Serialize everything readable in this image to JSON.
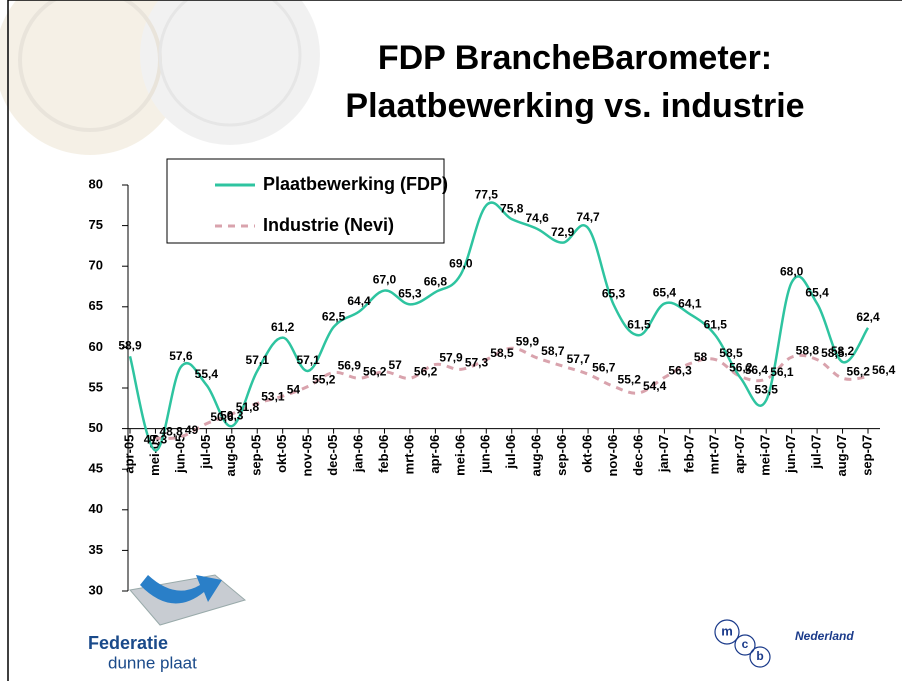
{
  "chart_data": {
    "type": "line",
    "title": "FDP BrancheBarometer:",
    "subtitle": "Plaatbewerking vs. industrie",
    "categories": [
      "apr-05",
      "mei-05",
      "jun-05",
      "jul-05",
      "aug-05",
      "sep-05",
      "okt-05",
      "nov-05",
      "dec-05",
      "jan-06",
      "feb-06",
      "mrt-06",
      "apr-06",
      "mei-06",
      "jun-06",
      "jul-06",
      "aug-06",
      "sep-06",
      "okt-06",
      "nov-06",
      "dec-06",
      "jan-07",
      "feb-07",
      "mrt-07",
      "apr-07",
      "mei-07",
      "jun-07",
      "jul-07",
      "aug-07",
      "sep-07"
    ],
    "series": [
      {
        "name": "Plaatbewerking (FDP)",
        "color": "#2ec4a0",
        "dashed": false,
        "values": [
          58.9,
          47.3,
          57.6,
          55.4,
          50.3,
          57.1,
          61.2,
          57.1,
          62.5,
          64.4,
          67.0,
          65.3,
          66.8,
          69.0,
          77.5,
          75.8,
          74.6,
          72.9,
          74.7,
          65.3,
          61.5,
          65.4,
          64.1,
          61.5,
          56.2,
          53.5,
          68.0,
          65.4,
          58.2,
          62.4
        ],
        "value_labels": [
          "58,9",
          "47,3",
          "57,6",
          "55,4",
          "50,3",
          "57,1",
          "61,2",
          "57,1",
          "62,5",
          "64,4",
          "67,0",
          "65,3",
          "66,8",
          "69,0",
          "77,5",
          "75,8",
          "74,6",
          "72,9",
          "74,7",
          "65,3",
          "61,5",
          "65,4",
          "64,1",
          "61,5",
          "56,2",
          "53,5",
          "68,0",
          "65,4",
          "58,2",
          "62,4"
        ]
      },
      {
        "name": "Industrie (Nevi)",
        "color": "#d9a3ad",
        "dashed": true,
        "values": [
          null,
          48.8,
          49,
          50.6,
          51.8,
          53.1,
          54,
          55.2,
          56.9,
          56.2,
          57,
          56.2,
          57.9,
          57.3,
          58.5,
          59.9,
          58.7,
          57.7,
          56.7,
          55.2,
          54.4,
          56.3,
          58,
          58.5,
          56.4,
          56.1,
          58.8,
          58.5,
          56.2,
          56.4
        ],
        "value_labels": [
          null,
          "48,8",
          "49",
          "50,6",
          "51,8",
          "53,1",
          "54",
          "55,2",
          "56,9",
          "56,2",
          "57",
          "56,2",
          "57,9",
          "57,3",
          "58,5",
          "59,9",
          "58,7",
          "57,7",
          "56,7",
          "55,2",
          "54,4",
          "56,3",
          "58",
          "58,5",
          "56,4",
          "56,1",
          "58,8",
          "58,5",
          "56,2",
          "56,4"
        ]
      }
    ],
    "ylim": [
      30,
      80
    ],
    "yticks": [
      30,
      35,
      40,
      45,
      50,
      55,
      60,
      65,
      70,
      75,
      80
    ],
    "xaxis_crosses": 50,
    "grid": false,
    "legend": "top-left",
    "logos": {
      "left_line1": "Federatie",
      "left_line2": "dunne plaat",
      "right_m": "m",
      "right_c": "c",
      "right_b": "b",
      "right_text": "Nederland"
    }
  }
}
